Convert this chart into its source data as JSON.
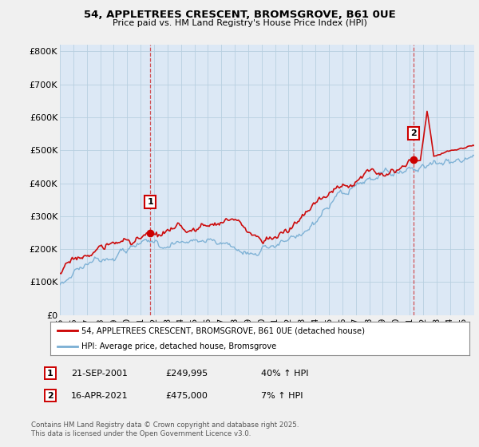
{
  "title_line1": "54, APPLETREES CRESCENT, BROMSGROVE, B61 0UE",
  "title_line2": "Price paid vs. HM Land Registry's House Price Index (HPI)",
  "ytick_labels": [
    "£0",
    "£100K",
    "£200K",
    "£300K",
    "£400K",
    "£500K",
    "£600K",
    "£700K",
    "£800K"
  ],
  "ytick_values": [
    0,
    100000,
    200000,
    300000,
    400000,
    500000,
    600000,
    700000,
    800000
  ],
  "ylim": [
    0,
    820000
  ],
  "xlim_start": 1995.0,
  "xlim_end": 2025.8,
  "background_color": "#f0f0f0",
  "plot_bg_color": "#dce8f5",
  "grid_color": "#b8cfe0",
  "red_color": "#cc0000",
  "blue_color": "#7aafd4",
  "legend_label_red": "54, APPLETREES CRESCENT, BROMSGROVE, B61 0UE (detached house)",
  "legend_label_blue": "HPI: Average price, detached house, Bromsgrove",
  "marker1_x": 2001.72,
  "marker1_y": 249995,
  "marker1_label": "1",
  "marker2_x": 2021.29,
  "marker2_y": 475000,
  "marker2_label": "2",
  "annotation1": [
    "1",
    "21-SEP-2001",
    "£249,995",
    "40% ↑ HPI"
  ],
  "annotation2": [
    "2",
    "16-APR-2021",
    "£475,000",
    "7% ↑ HPI"
  ],
  "footnote": "Contains HM Land Registry data © Crown copyright and database right 2025.\nThis data is licensed under the Open Government Licence v3.0.",
  "xtick_years": [
    1995,
    1996,
    1997,
    1998,
    1999,
    2000,
    2001,
    2002,
    2003,
    2004,
    2005,
    2006,
    2007,
    2008,
    2009,
    2010,
    2011,
    2012,
    2013,
    2014,
    2015,
    2016,
    2017,
    2018,
    2019,
    2020,
    2021,
    2022,
    2023,
    2024,
    2025
  ]
}
